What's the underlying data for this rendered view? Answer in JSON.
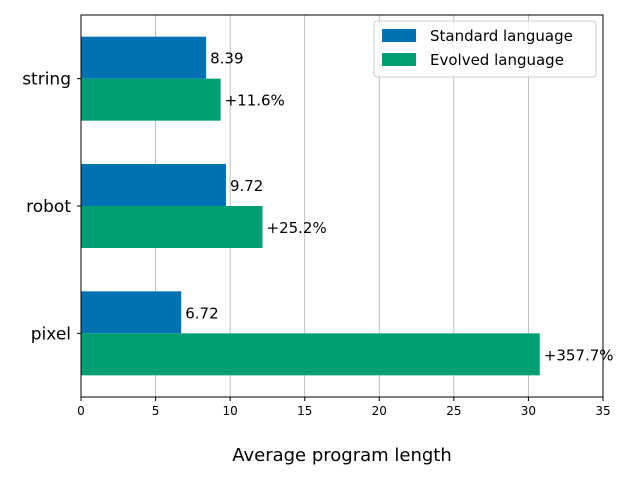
{
  "chart_data": {
    "type": "bar",
    "orientation": "horizontal",
    "categories": [
      "string",
      "robot",
      "pixel"
    ],
    "series": [
      {
        "name": "Standard language",
        "color": "#0072b2",
        "values": [
          8.39,
          9.72,
          6.72
        ],
        "labels": [
          "8.39",
          "9.72",
          "6.72"
        ]
      },
      {
        "name": "Evolved language",
        "color": "#009e73",
        "values": [
          9.36,
          12.17,
          30.76
        ],
        "labels": [
          "+11.6%",
          "+25.2%",
          "+357.7%"
        ]
      }
    ],
    "xlabel": "Average program length",
    "ylabel": "",
    "xlim": [
      0,
      35
    ],
    "xticks": [
      "0",
      "5",
      "10",
      "15",
      "20",
      "25",
      "30",
      "35"
    ],
    "grid": "vertical",
    "legend": "top-right"
  }
}
